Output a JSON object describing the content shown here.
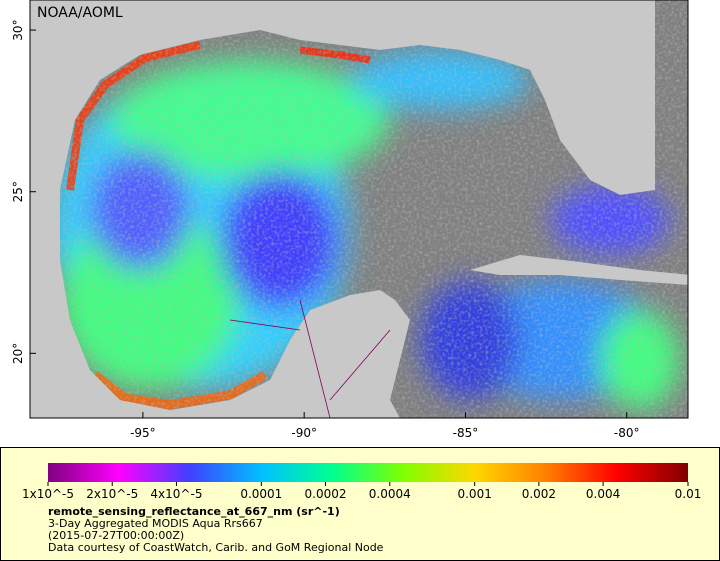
{
  "map": {
    "title": "NOAA/AOML",
    "lon_range": [
      -98.5,
      -78.1
    ],
    "lat_range": [
      18.0,
      30.93
    ],
    "lon_ticks": [
      {
        "value": -95,
        "label": "-95°"
      },
      {
        "value": -90,
        "label": "-90°"
      },
      {
        "value": -85,
        "label": "-85°"
      },
      {
        "value": -80,
        "label": "-80°"
      }
    ],
    "lat_ticks": [
      {
        "value": 30,
        "label": "30°"
      },
      {
        "value": 25,
        "label": "25°"
      },
      {
        "value": 20,
        "label": "20°"
      }
    ]
  },
  "colorbar": {
    "range": [
      1e-05,
      0.01
    ],
    "log": true,
    "colors": [
      "#800080",
      "#ff00ff",
      "#4040ff",
      "#00c0ff",
      "#00ff90",
      "#80ff00",
      "#ffd700",
      "#ff8000",
      "#ff0000",
      "#800000"
    ],
    "ticks": [
      {
        "value": 1e-05,
        "label": "1x10^-5"
      },
      {
        "value": 2e-05,
        "label": "2x10^-5"
      },
      {
        "value": 4e-05,
        "label": "4x10^-5"
      },
      0.0001,
      0.0002,
      0.0004,
      0.001,
      0.002,
      0.004,
      0.01
    ]
  },
  "legend": {
    "variable": "remote_sensing_reflectance_at_667_nm (sr^-1)",
    "description": "3-Day Aggregated MODIS Aqua Rrs667",
    "date": "(2015-07-27T00:00:00Z)",
    "credit": "Data courtesy of CoastWatch, Carib. and GoM Regional Node"
  }
}
